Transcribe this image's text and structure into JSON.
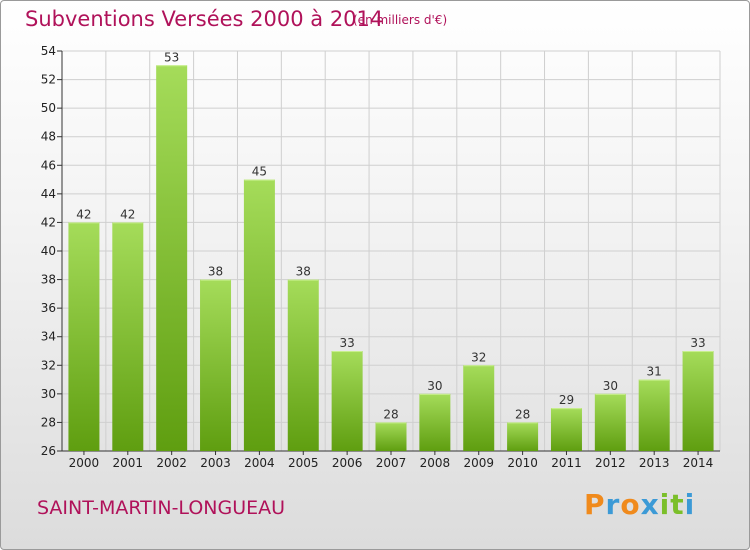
{
  "header": {
    "title": "Subventions Versées 2000 à 2014",
    "subtitle": "(en milliers d'€)"
  },
  "footer": {
    "commune": "SAINT-MARTIN-LONGUEAU",
    "logo_text": "Proxiti"
  },
  "colors": {
    "title": "#b0125a",
    "bar_top": "#a5dc5a",
    "bar_bottom": "#5f9e10",
    "grid": "#cfcfcf",
    "logo_letters": [
      "#f08a1c",
      "#3c9ad6",
      "#f08a1c",
      "#3c9ad6",
      "#7bbf2a",
      "#7bbf2a",
      "#3c9ad6"
    ]
  },
  "chart_data": {
    "type": "bar",
    "categories": [
      "2000",
      "2001",
      "2002",
      "2003",
      "2004",
      "2005",
      "2006",
      "2007",
      "2008",
      "2009",
      "2010",
      "2011",
      "2012",
      "2013",
      "2014"
    ],
    "values": [
      42,
      42,
      53,
      38,
      45,
      38,
      33,
      28,
      30,
      32,
      28,
      29,
      30,
      31,
      33
    ],
    "ylim": [
      26,
      54
    ],
    "yticks": [
      26,
      28,
      30,
      32,
      34,
      36,
      38,
      40,
      42,
      44,
      46,
      48,
      50,
      52,
      54
    ],
    "grid": true,
    "data_labels": true
  }
}
